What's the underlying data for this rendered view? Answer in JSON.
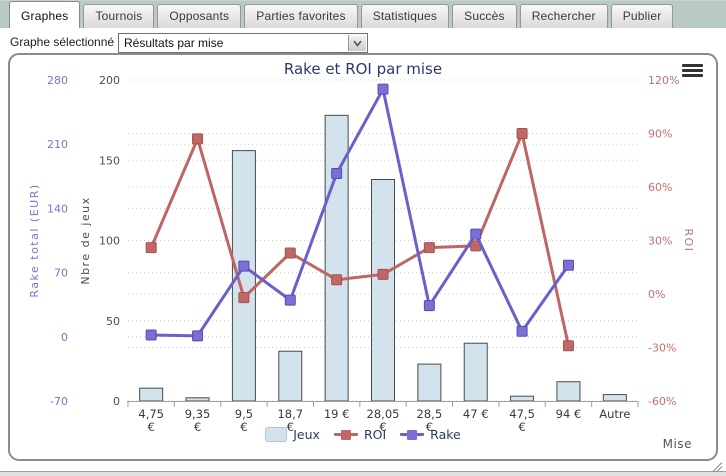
{
  "tabs": [
    {
      "label": "Graphes",
      "active": true
    },
    {
      "label": "Tournois",
      "active": false
    },
    {
      "label": "Opposants",
      "active": false
    },
    {
      "label": "Parties favorites",
      "active": false
    },
    {
      "label": "Statistiques",
      "active": false
    },
    {
      "label": "Succès",
      "active": false
    },
    {
      "label": "Rechercher",
      "active": false
    },
    {
      "label": "Publier",
      "active": false
    }
  ],
  "controls": {
    "label": "Graphe sélectionné :",
    "selected": "Résultats par mise"
  },
  "chart_data": {
    "type": "bar+line",
    "title": "Rake et ROI par mise",
    "xlabel": "Mise",
    "legend_position": "bottom",
    "grid": "dotted-horizontal",
    "categories": [
      {
        "label": "4,75 €",
        "lines": [
          "4,75",
          "€"
        ]
      },
      {
        "label": "9,35 €",
        "lines": [
          "9,35",
          "€"
        ]
      },
      {
        "label": "9,5 €",
        "lines": [
          "9,5",
          "€"
        ]
      },
      {
        "label": "18,7 €",
        "lines": [
          "18,7",
          "€"
        ]
      },
      {
        "label": "19 €",
        "lines": [
          "19 €"
        ]
      },
      {
        "label": "28,05 €",
        "lines": [
          "28,05",
          "€"
        ]
      },
      {
        "label": "28,5 €",
        "lines": [
          "28,5",
          "€"
        ]
      },
      {
        "label": "47 €",
        "lines": [
          "47 €"
        ]
      },
      {
        "label": "47,5 €",
        "lines": [
          "47,5",
          "€"
        ]
      },
      {
        "label": "94 €",
        "lines": [
          "94 €"
        ]
      },
      {
        "label": "Autre",
        "lines": [
          "Autre"
        ]
      }
    ],
    "series": [
      {
        "name": "Jeux",
        "type": "bar",
        "axis": "count",
        "color": "#d3e3ee",
        "border_color": "#4a4a4a",
        "values": [
          8,
          2,
          156,
          31,
          178,
          138,
          23,
          36,
          3,
          12,
          4
        ]
      },
      {
        "name": "ROI",
        "type": "line",
        "axis": "roi",
        "unit": "%",
        "color": "#bf6563",
        "marker_color": "#c06866",
        "marker_border": "#a35351",
        "values": [
          26,
          87,
          -2,
          23,
          8,
          11,
          26,
          27,
          90,
          -29,
          null
        ]
      },
      {
        "name": "Rake",
        "type": "line",
        "axis": "rake",
        "unit": "EUR",
        "color": "#6b60c9",
        "marker_color": "#7a6fd4",
        "marker_border": "#574cb5",
        "values": [
          2,
          1,
          77,
          40,
          178,
          270,
          34,
          112,
          6,
          78,
          null
        ]
      }
    ],
    "axes": {
      "rake": {
        "label": "Rake total (EUR)",
        "color": "#7b72cc",
        "min": -70,
        "max": 280,
        "ticks": [
          280,
          210,
          140,
          70,
          0,
          -70
        ]
      },
      "count": {
        "label": "Nbre de jeux",
        "color": "#4d4d4d",
        "min": 0,
        "max": 200,
        "ticks": [
          200,
          150,
          100,
          50,
          0
        ]
      },
      "roi": {
        "label": "ROI",
        "color": "#c2706e",
        "suffix": "%",
        "min": -60,
        "max": 120,
        "ticks": [
          120,
          90,
          60,
          30,
          0,
          -30,
          -60
        ]
      }
    }
  }
}
